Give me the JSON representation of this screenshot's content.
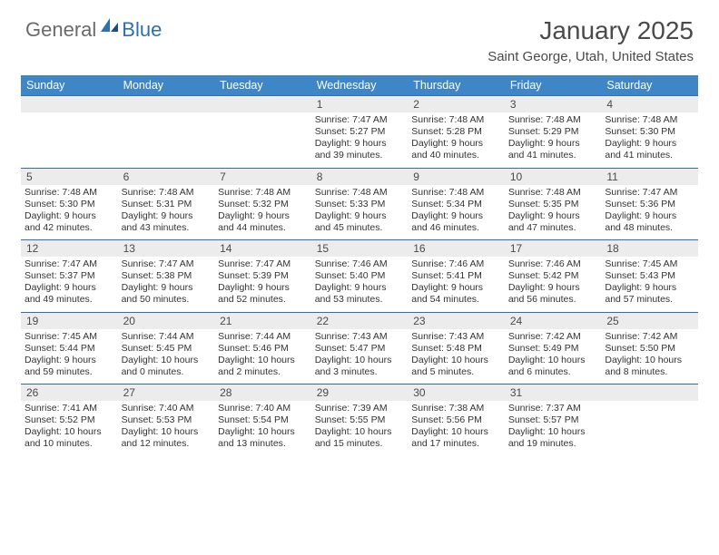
{
  "logo": {
    "text_general": "General",
    "text_blue": "Blue"
  },
  "title": "January 2025",
  "location": "Saint George, Utah, United States",
  "colors": {
    "header_bg": "#3f86c7",
    "header_text": "#ffffff",
    "row_border": "#2f6fad",
    "daynum_bg": "#ececec",
    "body_text": "#333333",
    "title_text": "#4a4a4a"
  },
  "day_names": [
    "Sunday",
    "Monday",
    "Tuesday",
    "Wednesday",
    "Thursday",
    "Friday",
    "Saturday"
  ],
  "weeks": [
    [
      null,
      null,
      null,
      {
        "n": "1",
        "sunrise": "7:47 AM",
        "sunset": "5:27 PM",
        "dl_h": "9",
        "dl_m": "39"
      },
      {
        "n": "2",
        "sunrise": "7:48 AM",
        "sunset": "5:28 PM",
        "dl_h": "9",
        "dl_m": "40"
      },
      {
        "n": "3",
        "sunrise": "7:48 AM",
        "sunset": "5:29 PM",
        "dl_h": "9",
        "dl_m": "41"
      },
      {
        "n": "4",
        "sunrise": "7:48 AM",
        "sunset": "5:30 PM",
        "dl_h": "9",
        "dl_m": "41"
      }
    ],
    [
      {
        "n": "5",
        "sunrise": "7:48 AM",
        "sunset": "5:30 PM",
        "dl_h": "9",
        "dl_m": "42"
      },
      {
        "n": "6",
        "sunrise": "7:48 AM",
        "sunset": "5:31 PM",
        "dl_h": "9",
        "dl_m": "43"
      },
      {
        "n": "7",
        "sunrise": "7:48 AM",
        "sunset": "5:32 PM",
        "dl_h": "9",
        "dl_m": "44"
      },
      {
        "n": "8",
        "sunrise": "7:48 AM",
        "sunset": "5:33 PM",
        "dl_h": "9",
        "dl_m": "45"
      },
      {
        "n": "9",
        "sunrise": "7:48 AM",
        "sunset": "5:34 PM",
        "dl_h": "9",
        "dl_m": "46"
      },
      {
        "n": "10",
        "sunrise": "7:48 AM",
        "sunset": "5:35 PM",
        "dl_h": "9",
        "dl_m": "47"
      },
      {
        "n": "11",
        "sunrise": "7:47 AM",
        "sunset": "5:36 PM",
        "dl_h": "9",
        "dl_m": "48"
      }
    ],
    [
      {
        "n": "12",
        "sunrise": "7:47 AM",
        "sunset": "5:37 PM",
        "dl_h": "9",
        "dl_m": "49"
      },
      {
        "n": "13",
        "sunrise": "7:47 AM",
        "sunset": "5:38 PM",
        "dl_h": "9",
        "dl_m": "50"
      },
      {
        "n": "14",
        "sunrise": "7:47 AM",
        "sunset": "5:39 PM",
        "dl_h": "9",
        "dl_m": "52"
      },
      {
        "n": "15",
        "sunrise": "7:46 AM",
        "sunset": "5:40 PM",
        "dl_h": "9",
        "dl_m": "53"
      },
      {
        "n": "16",
        "sunrise": "7:46 AM",
        "sunset": "5:41 PM",
        "dl_h": "9",
        "dl_m": "54"
      },
      {
        "n": "17",
        "sunrise": "7:46 AM",
        "sunset": "5:42 PM",
        "dl_h": "9",
        "dl_m": "56"
      },
      {
        "n": "18",
        "sunrise": "7:45 AM",
        "sunset": "5:43 PM",
        "dl_h": "9",
        "dl_m": "57"
      }
    ],
    [
      {
        "n": "19",
        "sunrise": "7:45 AM",
        "sunset": "5:44 PM",
        "dl_h": "9",
        "dl_m": "59"
      },
      {
        "n": "20",
        "sunrise": "7:44 AM",
        "sunset": "5:45 PM",
        "dl_h": "10",
        "dl_m": "0"
      },
      {
        "n": "21",
        "sunrise": "7:44 AM",
        "sunset": "5:46 PM",
        "dl_h": "10",
        "dl_m": "2"
      },
      {
        "n": "22",
        "sunrise": "7:43 AM",
        "sunset": "5:47 PM",
        "dl_h": "10",
        "dl_m": "3"
      },
      {
        "n": "23",
        "sunrise": "7:43 AM",
        "sunset": "5:48 PM",
        "dl_h": "10",
        "dl_m": "5"
      },
      {
        "n": "24",
        "sunrise": "7:42 AM",
        "sunset": "5:49 PM",
        "dl_h": "10",
        "dl_m": "6"
      },
      {
        "n": "25",
        "sunrise": "7:42 AM",
        "sunset": "5:50 PM",
        "dl_h": "10",
        "dl_m": "8"
      }
    ],
    [
      {
        "n": "26",
        "sunrise": "7:41 AM",
        "sunset": "5:52 PM",
        "dl_h": "10",
        "dl_m": "10"
      },
      {
        "n": "27",
        "sunrise": "7:40 AM",
        "sunset": "5:53 PM",
        "dl_h": "10",
        "dl_m": "12"
      },
      {
        "n": "28",
        "sunrise": "7:40 AM",
        "sunset": "5:54 PM",
        "dl_h": "10",
        "dl_m": "13"
      },
      {
        "n": "29",
        "sunrise": "7:39 AM",
        "sunset": "5:55 PM",
        "dl_h": "10",
        "dl_m": "15"
      },
      {
        "n": "30",
        "sunrise": "7:38 AM",
        "sunset": "5:56 PM",
        "dl_h": "10",
        "dl_m": "17"
      },
      {
        "n": "31",
        "sunrise": "7:37 AM",
        "sunset": "5:57 PM",
        "dl_h": "10",
        "dl_m": "19"
      },
      null
    ]
  ],
  "labels": {
    "sunrise": "Sunrise:",
    "sunset": "Sunset:",
    "daylight": "Daylight:",
    "hours": "hours",
    "and": "and",
    "minutes": "minutes."
  }
}
